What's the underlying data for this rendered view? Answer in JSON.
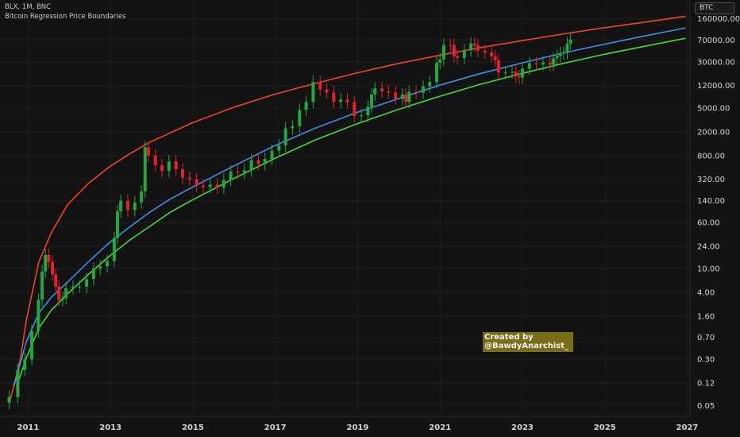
{
  "header": {
    "symbol_line": "BLX, 1M, BNC",
    "indicator_name": "Bitcoin Regression Price Boundaries",
    "symbol_badge": "BTC"
  },
  "annotation": {
    "line1": "Created by",
    "line2": "@BawdyAnarchist_"
  },
  "colors": {
    "background": "#131313",
    "grid": "#1d1d1d",
    "axis_text": "#d4d4d4",
    "candle_up": "#26a641",
    "candle_down": "#e0232c",
    "upper_band": "#f0452a",
    "middle_band": "#3f8fe6",
    "lower_band": "#42d93a",
    "annotation_bg": "#7a6d17"
  },
  "chart_data": {
    "type": "line",
    "subtype": "candlestick-with-regression-bands",
    "scale": "log",
    "title": "",
    "xlabel": "",
    "ylabel": "",
    "x_ticks": [
      "2011",
      "2013",
      "2015",
      "2017",
      "2019",
      "2021",
      "2023",
      "2025",
      "2027"
    ],
    "y_ticks": [
      "160000.00",
      "70000.00",
      "30000.00",
      "12000.00",
      "5000.00",
      "2000.00",
      "800.00",
      "320.00",
      "140.00",
      "60.00",
      "24.00",
      "10.00",
      "4.00",
      "1.60",
      "0.70",
      "0.30",
      "0.12",
      "0.05"
    ],
    "xlim": [
      2010.55,
      2027.05
    ],
    "ylim": [
      0.033,
      330000
    ],
    "grid": true,
    "series": [
      {
        "style": "candlestick",
        "points": [
          {
            "x": 2010.58,
            "c": 0.07
          },
          {
            "x": 2010.79,
            "c": 0.2
          },
          {
            "x": 2010.96,
            "c": 0.3
          },
          {
            "x": 2011.13,
            "c": 0.9
          },
          {
            "x": 2011.29,
            "c": 3
          },
          {
            "x": 2011.38,
            "c": 9
          },
          {
            "x": 2011.46,
            "c": 17
          },
          {
            "x": 2011.54,
            "c": 13
          },
          {
            "x": 2011.63,
            "c": 8
          },
          {
            "x": 2011.71,
            "c": 5
          },
          {
            "x": 2011.79,
            "c": 3
          },
          {
            "x": 2011.88,
            "c": 3.2
          },
          {
            "x": 2011.96,
            "c": 4.7
          },
          {
            "x": 2012.13,
            "c": 5
          },
          {
            "x": 2012.29,
            "c": 5
          },
          {
            "x": 2012.46,
            "c": 6.7
          },
          {
            "x": 2012.63,
            "c": 10
          },
          {
            "x": 2012.79,
            "c": 11
          },
          {
            "x": 2012.96,
            "c": 13.5
          },
          {
            "x": 2013.13,
            "c": 33
          },
          {
            "x": 2013.21,
            "c": 93
          },
          {
            "x": 2013.29,
            "c": 139
          },
          {
            "x": 2013.46,
            "c": 97
          },
          {
            "x": 2013.63,
            "c": 130
          },
          {
            "x": 2013.79,
            "c": 200
          },
          {
            "x": 2013.88,
            "c": 1100
          },
          {
            "x": 2013.96,
            "c": 800
          },
          {
            "x": 2014.13,
            "c": 550
          },
          {
            "x": 2014.29,
            "c": 440
          },
          {
            "x": 2014.46,
            "c": 640
          },
          {
            "x": 2014.63,
            "c": 470
          },
          {
            "x": 2014.79,
            "c": 340
          },
          {
            "x": 2014.96,
            "c": 320
          },
          {
            "x": 2015.13,
            "c": 250
          },
          {
            "x": 2015.29,
            "c": 235
          },
          {
            "x": 2015.46,
            "c": 260
          },
          {
            "x": 2015.63,
            "c": 230
          },
          {
            "x": 2015.79,
            "c": 310
          },
          {
            "x": 2015.96,
            "c": 430
          },
          {
            "x": 2016.13,
            "c": 416
          },
          {
            "x": 2016.29,
            "c": 450
          },
          {
            "x": 2016.46,
            "c": 670
          },
          {
            "x": 2016.63,
            "c": 575
          },
          {
            "x": 2016.79,
            "c": 700
          },
          {
            "x": 2016.96,
            "c": 965
          },
          {
            "x": 2017.13,
            "c": 1190
          },
          {
            "x": 2017.29,
            "c": 2300
          },
          {
            "x": 2017.46,
            "c": 2500
          },
          {
            "x": 2017.63,
            "c": 4700
          },
          {
            "x": 2017.79,
            "c": 6400
          },
          {
            "x": 2017.96,
            "c": 13800
          },
          {
            "x": 2018.13,
            "c": 10300
          },
          {
            "x": 2018.29,
            "c": 9200
          },
          {
            "x": 2018.46,
            "c": 6400
          },
          {
            "x": 2018.63,
            "c": 7000
          },
          {
            "x": 2018.79,
            "c": 6300
          },
          {
            "x": 2018.96,
            "c": 3700
          },
          {
            "x": 2019.13,
            "c": 3800
          },
          {
            "x": 2019.29,
            "c": 5300
          },
          {
            "x": 2019.38,
            "c": 8500
          },
          {
            "x": 2019.46,
            "c": 10800
          },
          {
            "x": 2019.63,
            "c": 9600
          },
          {
            "x": 2019.79,
            "c": 9150
          },
          {
            "x": 2019.96,
            "c": 7200
          },
          {
            "x": 2020.13,
            "c": 8500
          },
          {
            "x": 2020.21,
            "c": 6400
          },
          {
            "x": 2020.29,
            "c": 9450
          },
          {
            "x": 2020.46,
            "c": 9100
          },
          {
            "x": 2020.63,
            "c": 11700
          },
          {
            "x": 2020.79,
            "c": 13800
          },
          {
            "x": 2020.96,
            "c": 29000
          },
          {
            "x": 2021.04,
            "c": 33000
          },
          {
            "x": 2021.13,
            "c": 58000
          },
          {
            "x": 2021.29,
            "c": 57800
          },
          {
            "x": 2021.38,
            "c": 37300
          },
          {
            "x": 2021.46,
            "c": 35000
          },
          {
            "x": 2021.63,
            "c": 47100
          },
          {
            "x": 2021.79,
            "c": 61300
          },
          {
            "x": 2021.88,
            "c": 57000
          },
          {
            "x": 2021.96,
            "c": 46200
          },
          {
            "x": 2022.13,
            "c": 43200
          },
          {
            "x": 2022.29,
            "c": 37700
          },
          {
            "x": 2022.38,
            "c": 31800
          },
          {
            "x": 2022.46,
            "c": 19900
          },
          {
            "x": 2022.63,
            "c": 20000
          },
          {
            "x": 2022.79,
            "c": 20500
          },
          {
            "x": 2022.88,
            "c": 17100
          },
          {
            "x": 2022.96,
            "c": 16500
          },
          {
            "x": 2023.04,
            "c": 23100
          },
          {
            "x": 2023.21,
            "c": 28500
          },
          {
            "x": 2023.38,
            "c": 27200
          },
          {
            "x": 2023.54,
            "c": 29200
          },
          {
            "x": 2023.71,
            "c": 27000
          },
          {
            "x": 2023.79,
            "c": 34600
          },
          {
            "x": 2023.88,
            "c": 37700
          },
          {
            "x": 2023.96,
            "c": 42300
          },
          {
            "x": 2024.04,
            "c": 42600
          },
          {
            "x": 2024.13,
            "c": 61200
          },
          {
            "x": 2024.21,
            "c": 71300
          }
        ]
      },
      {
        "style": "line",
        "band": "upper",
        "points": [
          [
            2010.6,
            0.06
          ],
          [
            2010.85,
            0.3
          ],
          [
            2011.0,
            1.4
          ],
          [
            2011.3,
            13
          ],
          [
            2011.6,
            40
          ],
          [
            2012.0,
            120
          ],
          [
            2012.5,
            270
          ],
          [
            2013.0,
            510
          ],
          [
            2013.5,
            850
          ],
          [
            2014.0,
            1350
          ],
          [
            2015.0,
            2800
          ],
          [
            2016.0,
            5100
          ],
          [
            2017.0,
            8500
          ],
          [
            2018.0,
            13000
          ],
          [
            2019.0,
            19500
          ],
          [
            2020.0,
            28000
          ],
          [
            2021.0,
            38500
          ],
          [
            2022.0,
            52000
          ],
          [
            2023.0,
            68000
          ],
          [
            2024.0,
            88000
          ],
          [
            2025.0,
            112000
          ],
          [
            2026.0,
            140000
          ],
          [
            2027.0,
            175000
          ]
        ]
      },
      {
        "style": "line",
        "band": "middle",
        "points": [
          [
            2010.7,
            0.11
          ],
          [
            2011.0,
            0.6
          ],
          [
            2011.3,
            1.8
          ],
          [
            2011.6,
            3.3
          ],
          [
            2012.0,
            6
          ],
          [
            2012.5,
            13
          ],
          [
            2013.0,
            27
          ],
          [
            2013.5,
            50
          ],
          [
            2014.0,
            90
          ],
          [
            2014.5,
            150
          ],
          [
            2015.0,
            230
          ],
          [
            2016.0,
            520
          ],
          [
            2017.0,
            1150
          ],
          [
            2018.0,
            2300
          ],
          [
            2019.0,
            4200
          ],
          [
            2020.0,
            7100
          ],
          [
            2021.0,
            12000
          ],
          [
            2022.0,
            19000
          ],
          [
            2023.0,
            28500
          ],
          [
            2024.0,
            42000
          ],
          [
            2025.0,
            59000
          ],
          [
            2026.0,
            82000
          ],
          [
            2027.0,
            112000
          ]
        ]
      },
      {
        "style": "line",
        "band": "lower",
        "points": [
          [
            2010.75,
            0.1
          ],
          [
            2011.0,
            0.32
          ],
          [
            2011.3,
            1.0
          ],
          [
            2011.6,
            2.0
          ],
          [
            2012.0,
            3.8
          ],
          [
            2012.5,
            8
          ],
          [
            2013.0,
            16
          ],
          [
            2013.5,
            30
          ],
          [
            2014.0,
            52
          ],
          [
            2014.5,
            90
          ],
          [
            2015.0,
            140
          ],
          [
            2016.0,
            320
          ],
          [
            2017.0,
            700
          ],
          [
            2018.0,
            1450
          ],
          [
            2019.0,
            2700
          ],
          [
            2020.0,
            4700
          ],
          [
            2021.0,
            7800
          ],
          [
            2022.0,
            12500
          ],
          [
            2023.0,
            19000
          ],
          [
            2024.0,
            28000
          ],
          [
            2025.0,
            40000
          ],
          [
            2026.0,
            55000
          ],
          [
            2027.0,
            75000
          ]
        ]
      }
    ]
  }
}
